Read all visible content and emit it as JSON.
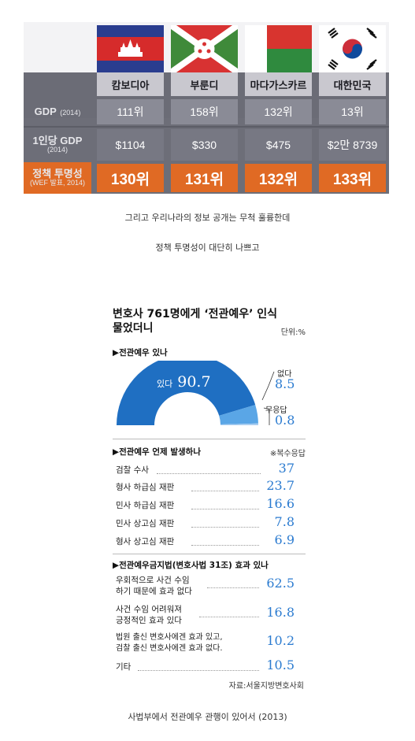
{
  "ranking_table": {
    "countries": [
      "캄보디아",
      "부룬디",
      "마다가스카르",
      "대한민국"
    ],
    "rows": [
      {
        "label": "GDP",
        "sub": "(2014)",
        "values": [
          "111위",
          "158위",
          "132위",
          "13위"
        ]
      },
      {
        "label": "1인당 GDP",
        "sub": "(2014)",
        "values": [
          "$1104",
          "$330",
          "$475",
          "$2만 8739"
        ]
      },
      {
        "label": "정책 투명성",
        "sub": "(WEF 발표, 2014)",
        "values": [
          "130위",
          "131위",
          "132위",
          "133위"
        ]
      }
    ],
    "colors": {
      "header_gray": "#6b6c76",
      "cell_gray": "#8a8b96",
      "highlight_orange": "#e06a24"
    }
  },
  "captions": {
    "line1": "그리고 우리나라의 정보 공개는 무척 훌륭한데",
    "line2": "정책 투명성이 대단히 나쁘고",
    "bottom": "사법부에서 전관예우 관행이 있어서 (2013)"
  },
  "infographic": {
    "title_line1": "변호사 761명에게 ‘전관예우’ 인식",
    "title_line2": "물었더니",
    "unit": "단위:%",
    "section1": {
      "heading": "▶전관예우 있나",
      "yes_label": "있다",
      "yes_value": "90.7",
      "no_label": "없다",
      "no_value": "8.5",
      "na_label": "무응답",
      "na_value": "0.8"
    },
    "section2": {
      "heading": "▶전관예우 언제 발생하나",
      "note": "※복수응답",
      "items": [
        {
          "label": "검찰 수사",
          "value": "37"
        },
        {
          "label": "형사 하급심 재판",
          "value": "23.7"
        },
        {
          "label": "민사 하급심 재판",
          "value": "16.6"
        },
        {
          "label": "민사 상고심 재판",
          "value": "7.8"
        },
        {
          "label": "형사 상고심 재판",
          "value": "6.9"
        }
      ]
    },
    "section3": {
      "heading": "▶전관예우금지법(변호사법 31조) 효과 있나",
      "items": [
        {
          "line1": "우회적으로 사건 수임",
          "line2": "하기 때문에 효과 없다",
          "value": "62.5"
        },
        {
          "line1": "사건 수임 어려워져",
          "line2": "긍정적인 효과 있다",
          "value": "16.8"
        },
        {
          "line1": "법원 출신 변호사에겐 효과 있고,",
          "line2": "검찰 출신 변호사에겐 효과 없다.",
          "value": "10.2"
        },
        {
          "line1": "기타",
          "line2": "",
          "value": "10.5"
        }
      ]
    },
    "source": "자료:서울지방변호사회",
    "colors": {
      "accent_blue": "#2b7bd0",
      "gauge_blue": "#1f6fc2",
      "gauge_light": "#5aa6e6"
    }
  },
  "chart_data": {
    "type": "pie",
    "labels": [
      "있다",
      "없다",
      "무응답"
    ],
    "values": [
      90.7,
      8.5,
      0.8
    ]
  }
}
